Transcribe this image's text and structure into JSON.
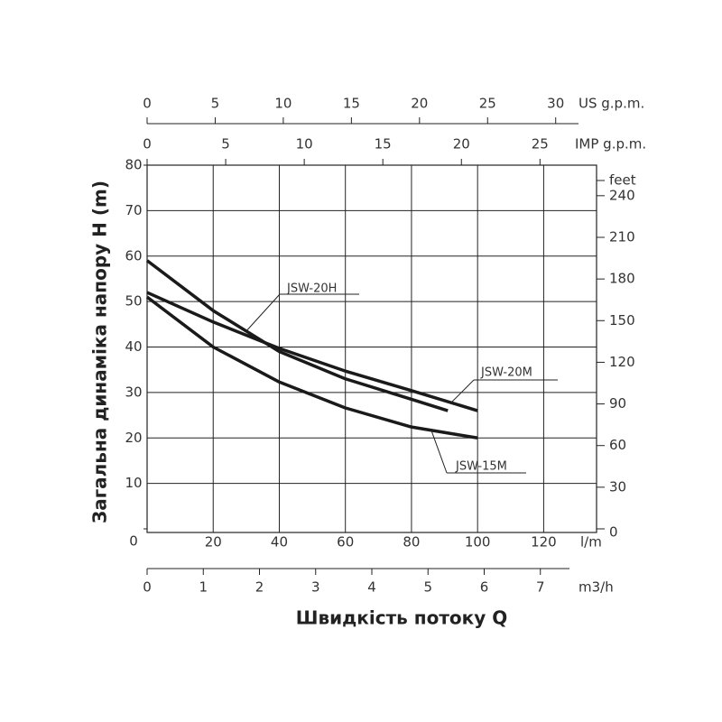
{
  "chart_data": {
    "type": "line",
    "x_label": "Швидкість потоку Q",
    "y_label": "Загальна динаміка напору H (m)",
    "x_unit": "l/m",
    "xlim": [
      0,
      136
    ],
    "xticks": [
      20,
      40,
      60,
      80,
      100,
      120
    ],
    "ylim": [
      0,
      80
    ],
    "yticks": [
      0,
      10,
      20,
      30,
      40,
      50,
      60,
      70,
      80
    ],
    "y2_unit": "feet",
    "y2lim": [
      0,
      262
    ],
    "y2ticks": [
      0,
      30,
      60,
      90,
      120,
      150,
      180,
      210,
      240
    ],
    "grid": true,
    "extra_x_axes": [
      {
        "label": "US g.p.m.",
        "lim": [
          0,
          33
        ],
        "ticks": [
          0,
          5,
          10,
          15,
          20,
          25,
          30
        ]
      },
      {
        "label": "IMP g.p.m.",
        "lim": [
          0,
          28.6
        ],
        "ticks": [
          0,
          5,
          10,
          15,
          20,
          25
        ]
      },
      {
        "label": "m3/h",
        "lim": [
          0,
          8
        ],
        "ticks": [
          0,
          1,
          2,
          3,
          4,
          5,
          6,
          7
        ]
      }
    ],
    "series": [
      {
        "name": "JSW-20H",
        "color": "#1a1a1a",
        "x": [
          0,
          20,
          40,
          60,
          80,
          91
        ],
        "values": [
          59,
          48,
          39,
          33,
          28.5,
          26
        ]
      },
      {
        "name": "JSW-20M",
        "color": "#1a1a1a",
        "x": [
          0,
          20,
          40,
          60,
          80,
          100
        ],
        "values": [
          52,
          45.5,
          39.7,
          34.7,
          30.4,
          26
        ]
      },
      {
        "name": "JSW-15M",
        "color": "#1a1a1a",
        "x": [
          0,
          20,
          40,
          60,
          80,
          100
        ],
        "values": [
          51,
          40,
          32.3,
          26.6,
          22.4,
          20
        ]
      }
    ]
  }
}
